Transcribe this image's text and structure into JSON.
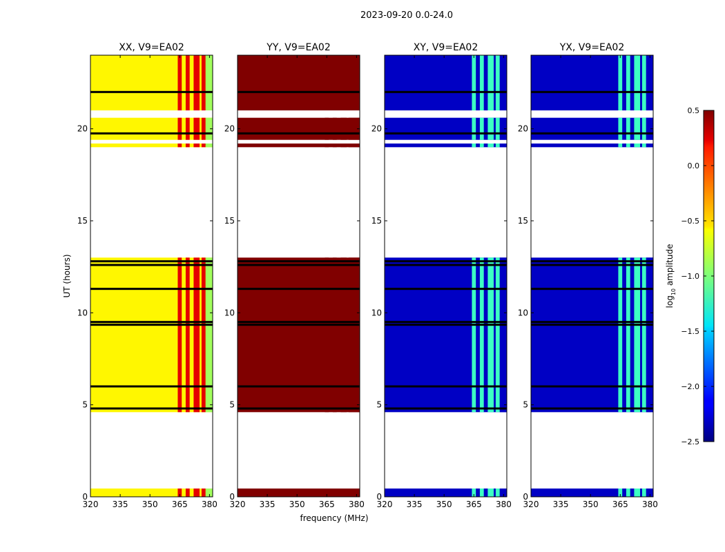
{
  "figure_title": "2023-09-20 0.0-24.0",
  "chart_data": {
    "type": "heatmap",
    "x": {
      "label": "frequency (MHz)",
      "range": [
        320,
        381.6
      ],
      "ticks": [
        320,
        335,
        350,
        365,
        380
      ],
      "tick_labels": [
        "320",
        "335",
        "350",
        "365",
        "380"
      ]
    },
    "y": {
      "label": "UT (hours)",
      "range": [
        0,
        24
      ],
      "ticks": [
        0,
        5,
        10,
        15,
        20
      ],
      "tick_labels": [
        "0",
        "5",
        "10",
        "15",
        "20"
      ]
    },
    "colorbar": {
      "label_main": "log",
      "label_sub": "10",
      "label_rest": " amplitude",
      "range": [
        -2.5,
        0.5
      ],
      "ticks": [
        0.5,
        0.0,
        -0.5,
        -1.0,
        -1.5,
        -2.0,
        -2.5
      ],
      "tick_labels": [
        "0.5",
        "0.0",
        "−0.5",
        "−1.0",
        "−1.5",
        "−2.0",
        "−2.5"
      ]
    },
    "observed_time_segments_hours": [
      [
        0.0,
        0.45
      ],
      [
        4.6,
        13.0
      ],
      [
        19.0,
        19.2
      ],
      [
        19.4,
        20.6
      ],
      [
        21.0,
        24.0
      ]
    ],
    "black_gap_lines_hours": [
      4.8,
      6.0,
      9.35,
      9.5,
      11.3,
      12.6,
      12.8,
      19.75,
      22.0
    ],
    "rfi_bands_mhz": [
      [
        364,
        366
      ],
      [
        368,
        370
      ],
      [
        372,
        375
      ],
      [
        376,
        378
      ]
    ],
    "panels": [
      {
        "title": "XX, V9=EA02",
        "base_value": -0.6,
        "band_value": 0.2,
        "edge_value": -0.9
      },
      {
        "title": "YY, V9=EA02",
        "base_value": 0.5,
        "band_value": 0.5,
        "edge_value": 0.5
      },
      {
        "title": "XY, V9=EA02",
        "base_value": -2.3,
        "band_value": -1.2,
        "edge_value": -2.3
      },
      {
        "title": "YX, V9=EA02",
        "base_value": -2.3,
        "band_value": -1.2,
        "edge_value": -2.3
      }
    ]
  }
}
